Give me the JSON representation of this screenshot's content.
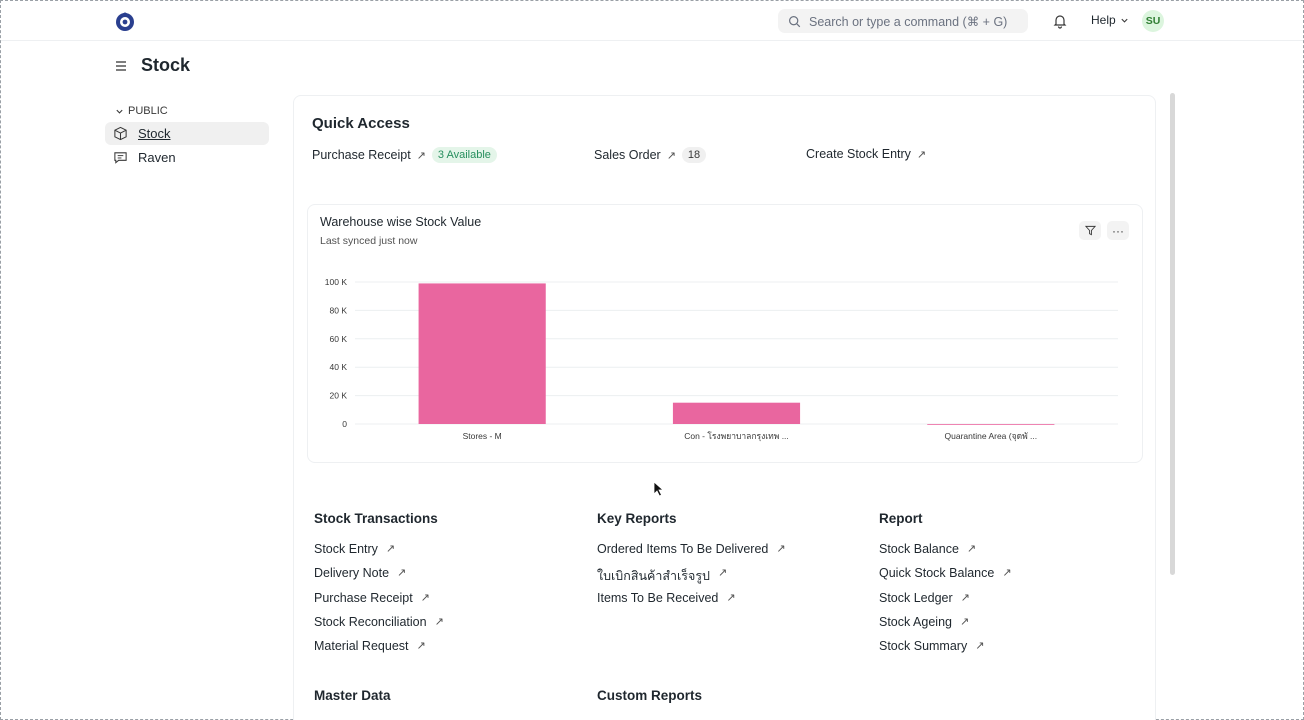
{
  "navbar": {
    "search_placeholder": "Search or type a command (⌘ + G)",
    "help_label": "Help",
    "avatar_initials": "SU"
  },
  "page": {
    "title": "Stock"
  },
  "sidebar": {
    "section_label": "PUBLIC",
    "items": [
      {
        "label": "Stock",
        "icon": "box-icon",
        "active": true
      },
      {
        "label": "Raven",
        "icon": "chat-icon",
        "active": false
      }
    ]
  },
  "quick_access": {
    "title": "Quick Access",
    "shortcuts": [
      {
        "label": "Purchase Receipt",
        "badge": "3 Available"
      },
      {
        "label": "Sales Order",
        "badge": "18"
      },
      {
        "label": "Create Stock Entry"
      }
    ]
  },
  "chart_card": {
    "title": "Warehouse wise Stock Value",
    "subtitle": "Last synced just now"
  },
  "chart_data": {
    "type": "bar",
    "categories": [
      "Stores - M",
      "Con - โรงพยาบาลกรุงเทพ ...",
      "Quarantine Area (จุดพั ..."
    ],
    "values": [
      99000,
      15000,
      0
    ],
    "color": "#e9669f",
    "ylim": [
      0,
      100000
    ],
    "yticks": [
      0,
      20000,
      40000,
      60000,
      80000,
      100000
    ],
    "ytick_labels": [
      "0",
      "20 K",
      "40 K",
      "60 K",
      "80 K",
      "100 K"
    ],
    "grid": true
  },
  "sections": {
    "stock_transactions": {
      "title": "Stock Transactions",
      "links": [
        "Stock Entry",
        "Delivery Note",
        "Purchase Receipt",
        "Stock Reconciliation",
        "Material Request"
      ]
    },
    "key_reports": {
      "title": "Key Reports",
      "links": [
        "Ordered Items To Be Delivered",
        "ใบเบิกสินค้าสำเร็จรูป",
        "Items To Be Received"
      ]
    },
    "report": {
      "title": "Report",
      "links": [
        "Stock Balance",
        "Quick Stock Balance",
        "Stock Ledger",
        "Stock Ageing",
        "Stock Summary"
      ]
    },
    "master_data": {
      "title": "Master Data"
    },
    "custom_reports": {
      "title": "Custom Reports"
    }
  },
  "link_arrow": "↗"
}
